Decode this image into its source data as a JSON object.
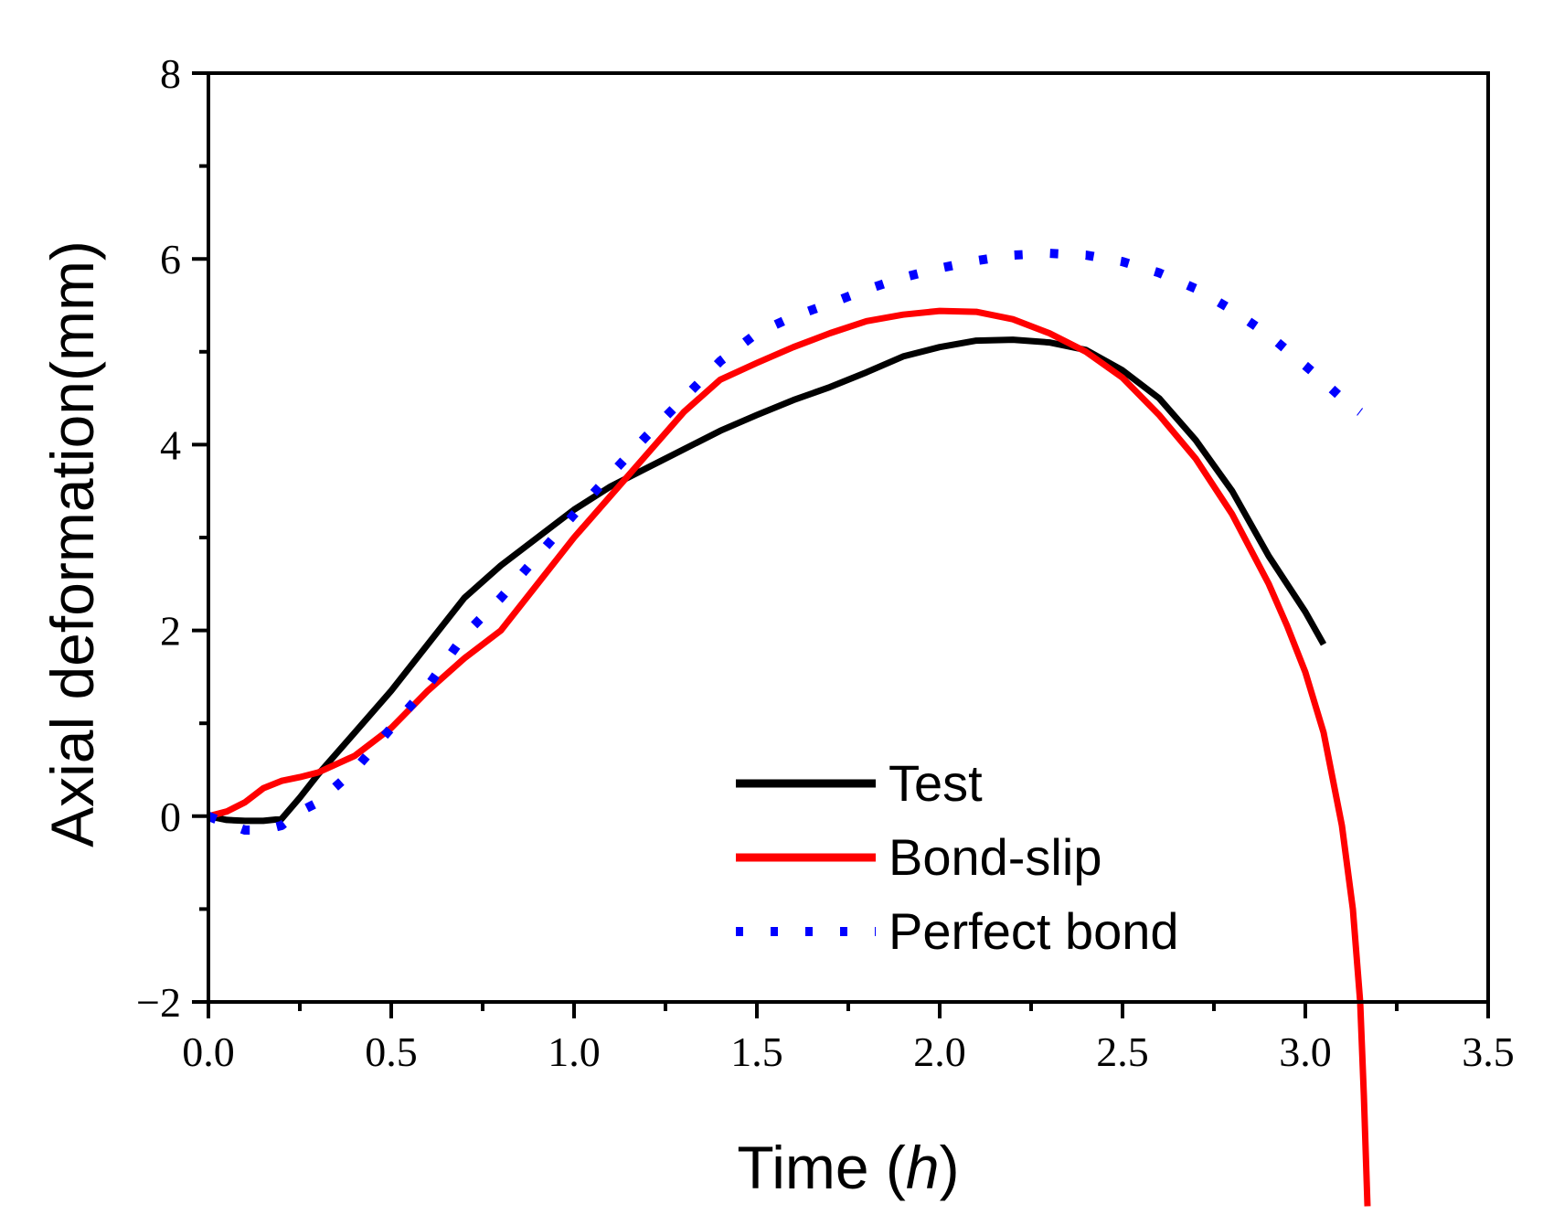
{
  "chart_data": {
    "type": "line",
    "title": "",
    "xlabel": "Time",
    "xlabel_unit": "h",
    "ylabel": "Axial deformation(mm)",
    "xlim": [
      0.0,
      3.5
    ],
    "ylim": [
      -2,
      8
    ],
    "x_ticks": [
      0.0,
      0.5,
      1.0,
      1.5,
      2.0,
      2.5,
      3.0,
      3.5
    ],
    "x_tick_labels": [
      "0.0",
      "0.5",
      "1.0",
      "1.5",
      "2.0",
      "2.5",
      "3.0",
      "3.5"
    ],
    "y_ticks": [
      -2,
      0,
      2,
      4,
      6,
      8
    ],
    "y_tick_labels": [
      "−2",
      "0",
      "2",
      "4",
      "6",
      "8"
    ],
    "grid": false,
    "legend_position": "bottom-center",
    "series": [
      {
        "name": "Test",
        "color": "#000000",
        "style": "solid",
        "points": [
          [
            0.0,
            0.0
          ],
          [
            0.05,
            -0.04
          ],
          [
            0.1,
            -0.05
          ],
          [
            0.15,
            -0.05
          ],
          [
            0.2,
            -0.03
          ],
          [
            0.25,
            0.2
          ],
          [
            0.3,
            0.45
          ],
          [
            0.4,
            0.9
          ],
          [
            0.5,
            1.35
          ],
          [
            0.6,
            1.85
          ],
          [
            0.7,
            2.35
          ],
          [
            0.8,
            2.7
          ],
          [
            0.9,
            3.0
          ],
          [
            1.0,
            3.3
          ],
          [
            1.1,
            3.55
          ],
          [
            1.2,
            3.75
          ],
          [
            1.3,
            3.95
          ],
          [
            1.4,
            4.15
          ],
          [
            1.5,
            4.32
          ],
          [
            1.6,
            4.48
          ],
          [
            1.7,
            4.62
          ],
          [
            1.8,
            4.78
          ],
          [
            1.9,
            4.95
          ],
          [
            2.0,
            5.05
          ],
          [
            2.1,
            5.12
          ],
          [
            2.2,
            5.13
          ],
          [
            2.3,
            5.1
          ],
          [
            2.4,
            5.02
          ],
          [
            2.5,
            4.8
          ],
          [
            2.6,
            4.5
          ],
          [
            2.7,
            4.05
          ],
          [
            2.8,
            3.5
          ],
          [
            2.9,
            2.8
          ],
          [
            3.0,
            2.2
          ],
          [
            3.05,
            1.85
          ]
        ]
      },
      {
        "name": "Bond-slip",
        "color": "#ff0000",
        "style": "solid",
        "points": [
          [
            0.0,
            0.0
          ],
          [
            0.05,
            0.05
          ],
          [
            0.1,
            0.15
          ],
          [
            0.15,
            0.3
          ],
          [
            0.2,
            0.38
          ],
          [
            0.25,
            0.42
          ],
          [
            0.3,
            0.47
          ],
          [
            0.4,
            0.65
          ],
          [
            0.5,
            0.95
          ],
          [
            0.6,
            1.35
          ],
          [
            0.7,
            1.7
          ],
          [
            0.8,
            2.0
          ],
          [
            0.9,
            2.5
          ],
          [
            1.0,
            3.0
          ],
          [
            1.1,
            3.45
          ],
          [
            1.2,
            3.9
          ],
          [
            1.3,
            4.35
          ],
          [
            1.4,
            4.7
          ],
          [
            1.5,
            4.88
          ],
          [
            1.6,
            5.05
          ],
          [
            1.7,
            5.2
          ],
          [
            1.8,
            5.33
          ],
          [
            1.9,
            5.4
          ],
          [
            2.0,
            5.44
          ],
          [
            2.1,
            5.43
          ],
          [
            2.2,
            5.35
          ],
          [
            2.3,
            5.2
          ],
          [
            2.4,
            5.0
          ],
          [
            2.5,
            4.72
          ],
          [
            2.6,
            4.32
          ],
          [
            2.7,
            3.85
          ],
          [
            2.8,
            3.25
          ],
          [
            2.9,
            2.5
          ],
          [
            2.95,
            2.05
          ],
          [
            3.0,
            1.55
          ],
          [
            3.05,
            0.9
          ],
          [
            3.1,
            -0.1
          ],
          [
            3.13,
            -1.0
          ],
          [
            3.15,
            -2.0
          ],
          [
            3.16,
            -3.0
          ],
          [
            3.17,
            -4.2
          ]
        ]
      },
      {
        "name": "Perfect bond",
        "color": "#0000ff",
        "style": "dotted",
        "points": [
          [
            0.0,
            0.0
          ],
          [
            0.05,
            -0.08
          ],
          [
            0.1,
            -0.15
          ],
          [
            0.15,
            -0.15
          ],
          [
            0.2,
            -0.1
          ],
          [
            0.25,
            0.05
          ],
          [
            0.3,
            0.15
          ],
          [
            0.4,
            0.5
          ],
          [
            0.5,
            0.95
          ],
          [
            0.6,
            1.4
          ],
          [
            0.7,
            1.95
          ],
          [
            0.8,
            2.35
          ],
          [
            0.9,
            2.8
          ],
          [
            1.0,
            3.25
          ],
          [
            1.1,
            3.68
          ],
          [
            1.2,
            4.1
          ],
          [
            1.3,
            4.5
          ],
          [
            1.4,
            4.9
          ],
          [
            1.5,
            5.2
          ],
          [
            1.6,
            5.38
          ],
          [
            1.7,
            5.52
          ],
          [
            1.8,
            5.67
          ],
          [
            1.9,
            5.8
          ],
          [
            2.0,
            5.9
          ],
          [
            2.1,
            5.98
          ],
          [
            2.2,
            6.04
          ],
          [
            2.3,
            6.06
          ],
          [
            2.4,
            6.04
          ],
          [
            2.5,
            5.97
          ],
          [
            2.6,
            5.85
          ],
          [
            2.7,
            5.68
          ],
          [
            2.8,
            5.45
          ],
          [
            2.9,
            5.18
          ],
          [
            3.0,
            4.85
          ],
          [
            3.05,
            4.68
          ],
          [
            3.1,
            4.5
          ],
          [
            3.15,
            4.35
          ]
        ]
      }
    ]
  }
}
